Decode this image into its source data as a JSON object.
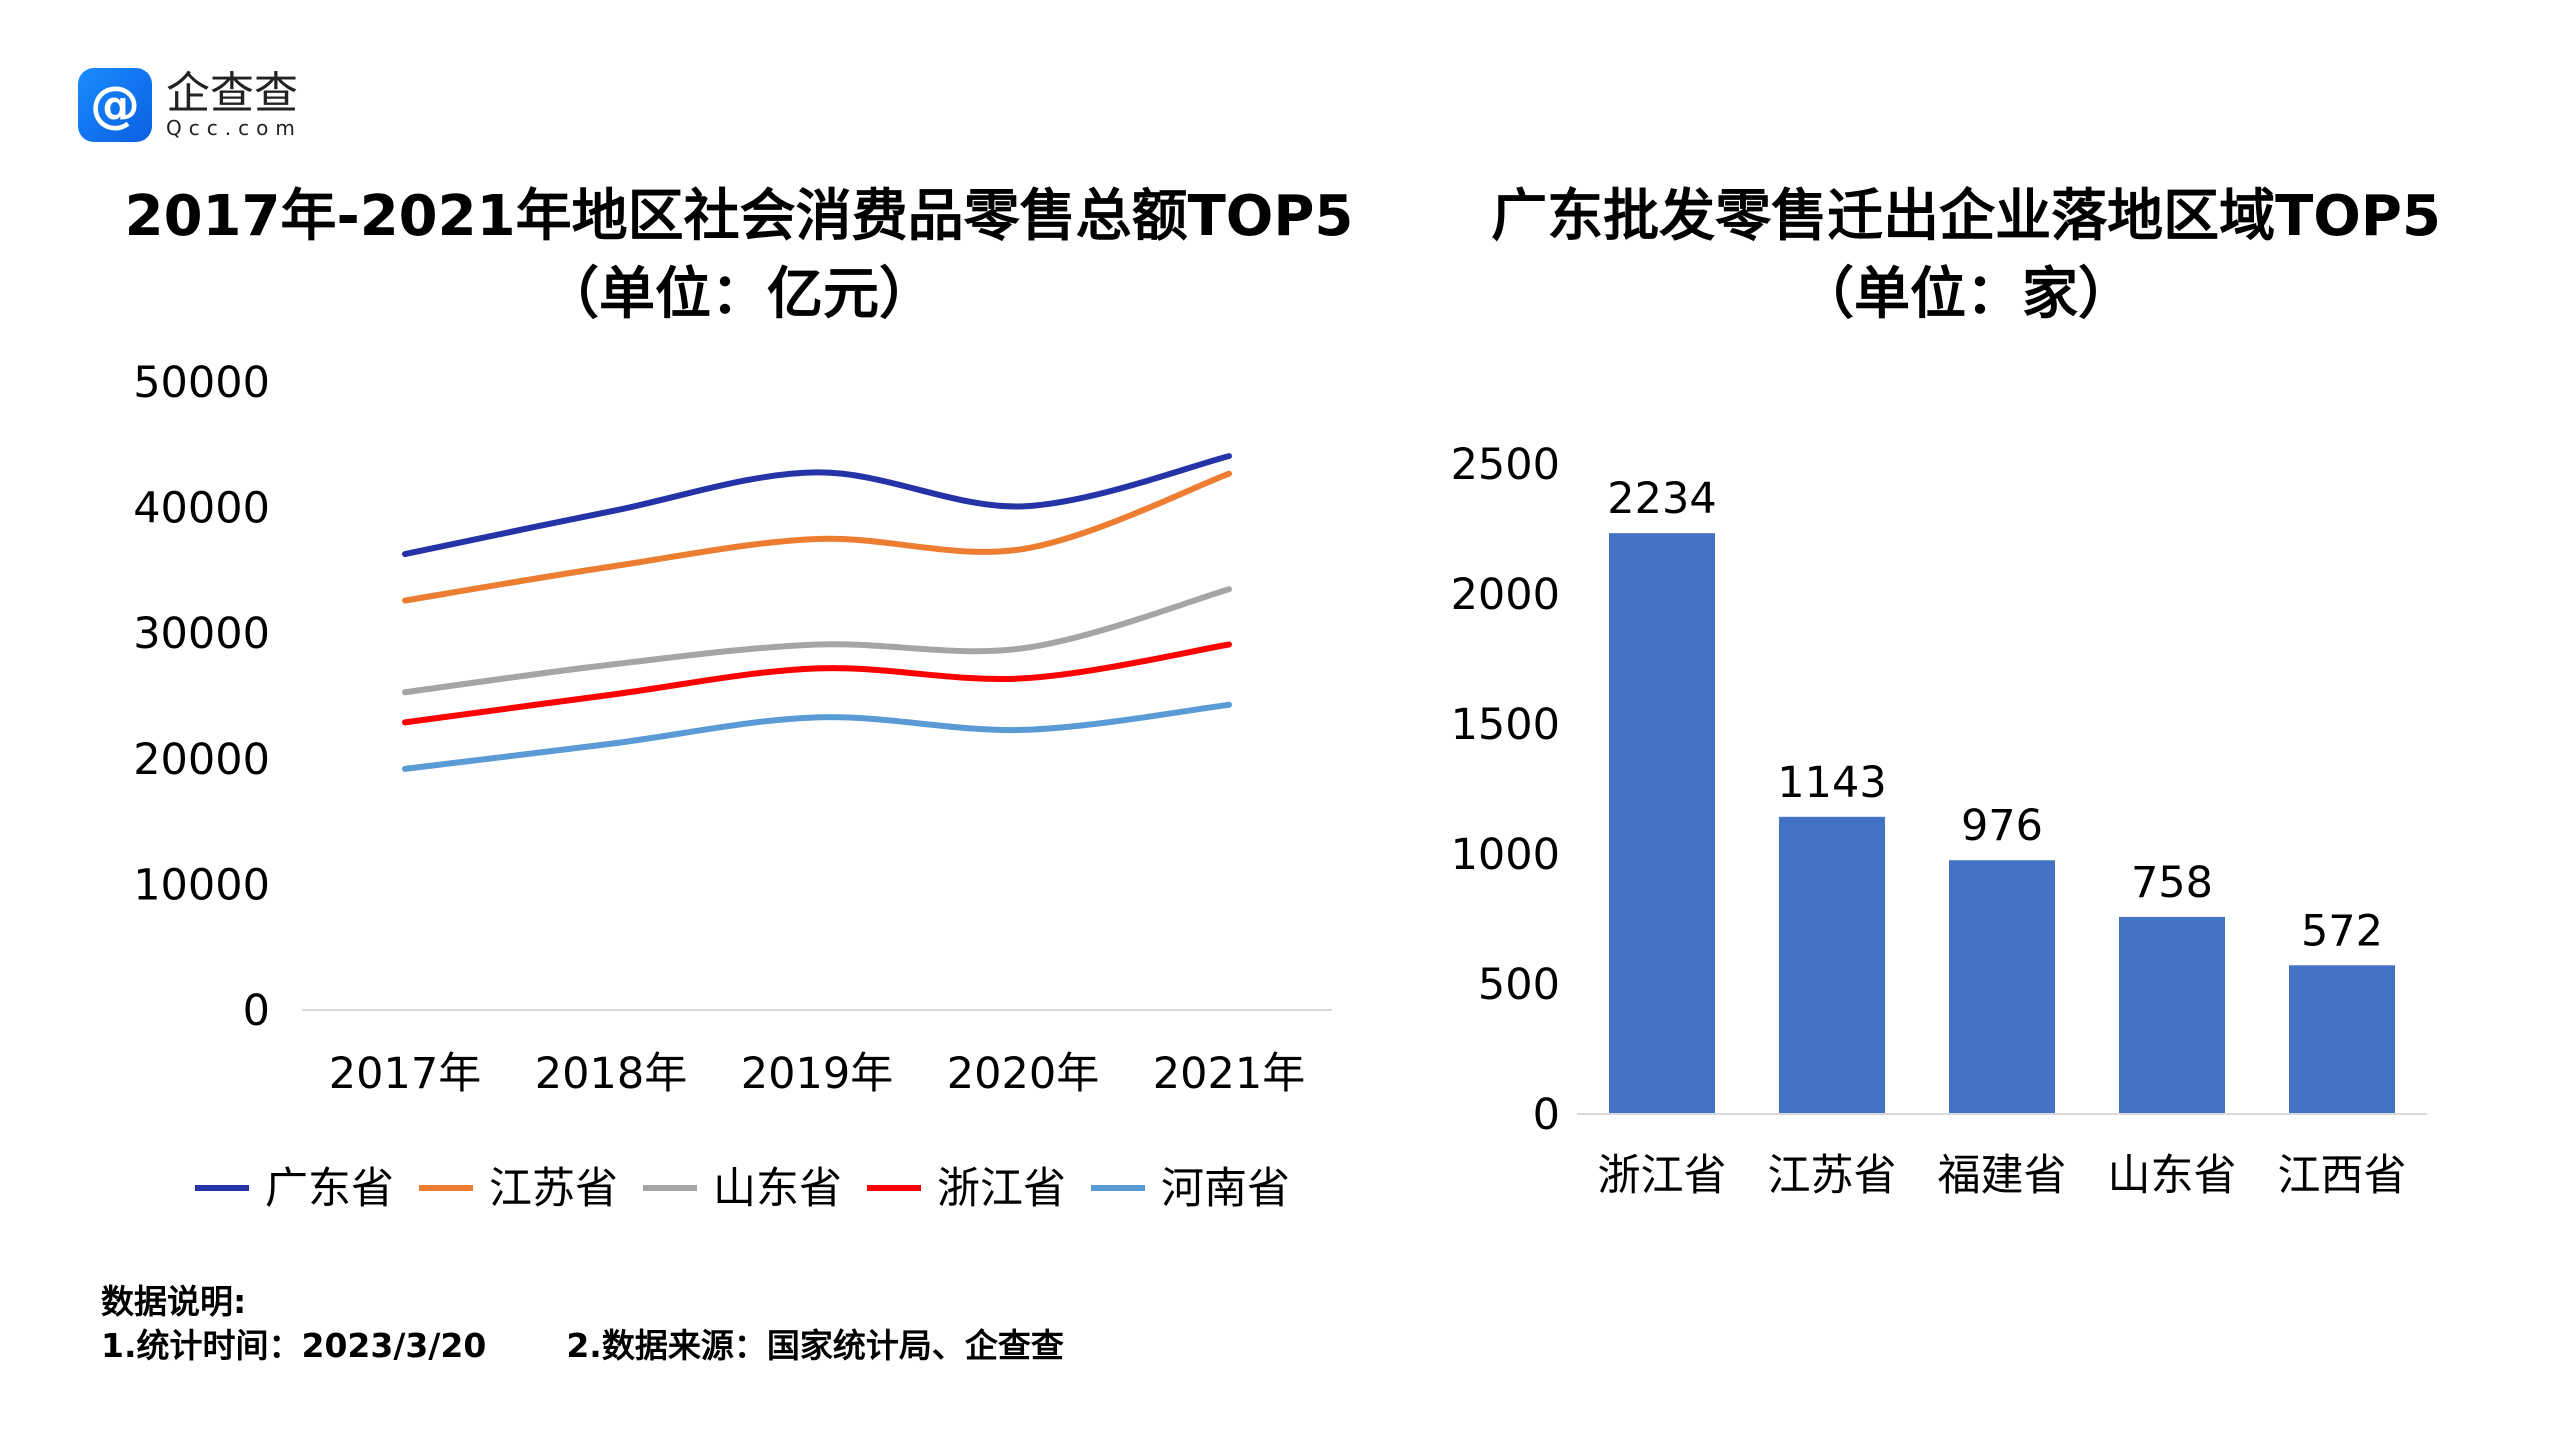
{
  "logo": {
    "cn": "企查查",
    "en": "Qcc.com"
  },
  "chart_data": [
    {
      "type": "line",
      "title": "2017年-2021年地区社会消费品零售总额TOP5",
      "subtitle": "（单位：亿元）",
      "categories": [
        "2017年",
        "2018年",
        "2019年",
        "2020年",
        "2021年"
      ],
      "ylim": [
        0,
        50000
      ],
      "yticks": [
        "0",
        "10000",
        "20000",
        "30000",
        "40000",
        "50000"
      ],
      "grid": false,
      "legend": "bottom",
      "series": [
        {
          "name": "广东省",
          "color": "#2433a6",
          "values": [
            36300,
            39700,
            42800,
            40100,
            44100
          ]
        },
        {
          "name": "江苏省",
          "color": "#ed7d31",
          "values": [
            32600,
            35300,
            37500,
            36700,
            42700
          ]
        },
        {
          "name": "山东省",
          "color": "#a5a5a5",
          "values": [
            25300,
            27500,
            29100,
            28800,
            33500
          ]
        },
        {
          "name": "浙江省",
          "color": "#ff0000",
          "values": [
            22900,
            25100,
            27200,
            26400,
            29100
          ]
        },
        {
          "name": "河南省",
          "color": "#5b9bd5",
          "values": [
            19200,
            21200,
            23300,
            22300,
            24300
          ]
        }
      ]
    },
    {
      "type": "bar",
      "title": "广东批发零售迁出企业落地区域TOP5",
      "subtitle": "（单位：家）",
      "categories": [
        "浙江省",
        "江苏省",
        "福建省",
        "山东省",
        "江西省"
      ],
      "values": [
        2234,
        1143,
        976,
        758,
        572
      ],
      "ylim": [
        0,
        2500
      ],
      "yticks": [
        "0",
        "500",
        "1000",
        "1500",
        "2000",
        "2500"
      ],
      "color": "#4472c4",
      "grid": false
    }
  ],
  "notes": {
    "heading": "数据说明:",
    "time": "1.统计时间：2023/3/20",
    "source": "2.数据来源：国家统计局、企查查"
  }
}
